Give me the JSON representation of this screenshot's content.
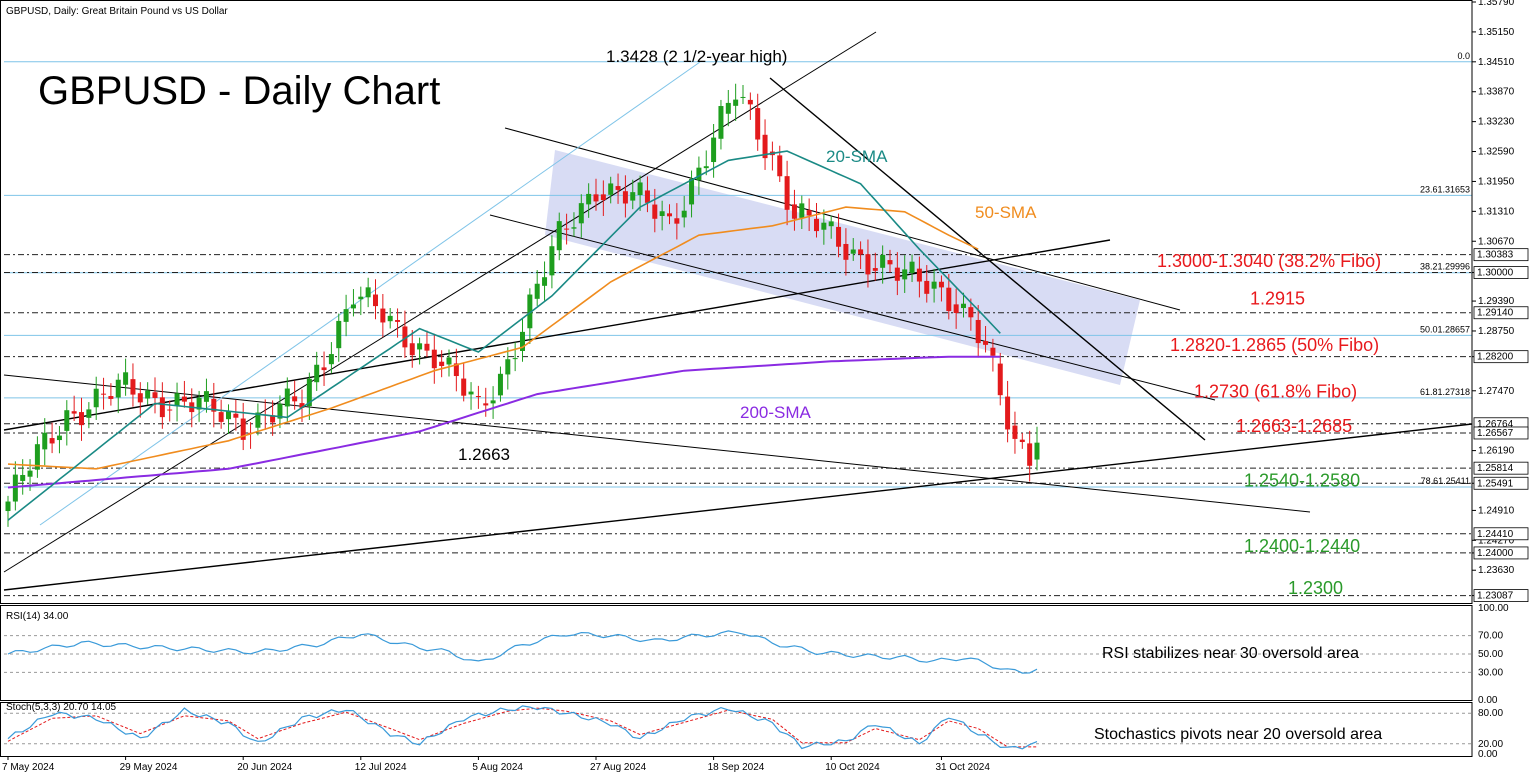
{
  "header": {
    "symbol_line": "GBPUSD, Daily:  Great Britain Pound vs US Dollar",
    "title": "GBPUSD - Daily Chart"
  },
  "annotations": {
    "high_label": "1.3428 (2 1/2-year high)",
    "low_label": "1.2663",
    "sma20": "20-SMA",
    "sma50": "50-SMA",
    "sma200": "200-SMA",
    "rsi_note": "RSI stabilizes near 30 oversold area",
    "stoch_note": "Stochastics pivots near 20 oversold area"
  },
  "levels": [
    {
      "text": "1.3000-1.3040 (38.2% Fibo)",
      "price": 1.3025,
      "color": "#e8191c"
    },
    {
      "text": "1.2915",
      "price": 1.2945,
      "color": "#e8191c"
    },
    {
      "text": "1.2820-1.2865 (50% Fibo)",
      "price": 1.2845,
      "color": "#e8191c"
    },
    {
      "text": "1.2730 (61.8% Fibo)",
      "price": 1.2745,
      "color": "#e8191c"
    },
    {
      "text": "1.2663-1.2685",
      "price": 1.2672,
      "color": "#e8191c"
    },
    {
      "text": "1.2540-1.2580",
      "price": 1.2555,
      "color": "#2a9a2a"
    },
    {
      "text": "1.2400-1.2440",
      "price": 1.2415,
      "color": "#2a9a2a"
    },
    {
      "text": "1.2300",
      "price": 1.2325,
      "color": "#2a9a2a"
    }
  ],
  "fibo_labels": [
    {
      "text": "0.0",
      "price": 1.34511
    },
    {
      "text": "23.61.31653",
      "price": 1.31653
    },
    {
      "text": "38.21.29996",
      "price": 1.29996
    },
    {
      "text": "50.01.28657",
      "price": 1.28657
    },
    {
      "text": "61.81.27318",
      "price": 1.27318
    },
    {
      "text": "78.61.25411",
      "price": 1.25411
    }
  ],
  "price_axis": {
    "ticks": [
      "1.35790",
      "1.35150",
      "1.34510",
      "1.33870",
      "1.33230",
      "1.32590",
      "1.31950",
      "1.31310",
      "1.30670",
      "1.30000",
      "1.29390",
      "1.28750",
      "1.28200",
      "1.27470",
      "1.26190",
      "1.25491",
      "1.24910",
      "1.24270",
      "1.24000",
      "1.23630",
      "1.23087"
    ],
    "tick_values": [
      1.3579,
      1.3515,
      1.3451,
      1.3387,
      1.3323,
      1.3259,
      1.3195,
      1.3131,
      1.3067,
      1.3,
      1.2939,
      1.2875,
      1.282,
      1.2747,
      1.2619,
      1.25491,
      1.2491,
      1.2427,
      1.24,
      1.2363,
      1.23087
    ],
    "highlighted": [
      {
        "text": "1.30383",
        "price": 1.30383
      },
      {
        "text": "1.30000",
        "price": 1.3
      },
      {
        "text": "1.29140",
        "price": 1.2914
      },
      {
        "text": "1.28200",
        "price": 1.282
      },
      {
        "text": "1.26764",
        "price": 1.26764
      },
      {
        "text": "1.26567",
        "price": 1.26567
      },
      {
        "text": "1.25814",
        "price": 1.25814
      },
      {
        "text": "1.25491",
        "price": 1.25491
      },
      {
        "text": "1.24410",
        "price": 1.2441
      },
      {
        "text": "1.24000",
        "price": 1.24
      },
      {
        "text": "1.23087",
        "price": 1.23087
      }
    ]
  },
  "date_axis": [
    {
      "text": "7 May 2024",
      "idx": 0
    },
    {
      "text": "29 May 2024",
      "idx": 16
    },
    {
      "text": "20 Jun 2024",
      "idx": 32
    },
    {
      "text": "12 Jul 2024",
      "idx": 48
    },
    {
      "text": "5 Aug 2024",
      "idx": 64
    },
    {
      "text": "27 Aug 2024",
      "idx": 80
    },
    {
      "text": "18 Sep 2024",
      "idx": 96
    },
    {
      "text": "10 Oct 2024",
      "idx": 112
    },
    {
      "text": "31 Oct 2024",
      "idx": 127
    }
  ],
  "rsi": {
    "label": "RSI(14) 34.00",
    "ticks": [
      "100.00",
      "70.00",
      "50.00",
      "30.00",
      "0.00"
    ],
    "tick_values": [
      100,
      70,
      50,
      30,
      0
    ]
  },
  "stoch": {
    "label": "Stoch(5,3,3) 20.70 14.05",
    "ticks": [
      "80.00",
      "20.00",
      "0.00"
    ],
    "tick_values": [
      80,
      20,
      0
    ]
  },
  "colors": {
    "up": "#1e9e1e",
    "down": "#e31a1c",
    "sma20": "#1a8a85",
    "sma50": "#f08c1e",
    "sma200": "#8a2be2",
    "channel_fill": "#c8cdf0",
    "rsi_line": "#3a9ad9",
    "stoch_main": "#3a9ad9",
    "stoch_signal": "#e31a1c",
    "fibo": "#7fc4e8"
  },
  "chart_data": {
    "type": "line",
    "title": "GBPUSD - Daily Chart",
    "subtitle": "GBPUSD, Daily:  Great Britain Pound vs US Dollar",
    "ylim": [
      1.2295,
      1.3579
    ],
    "close_waypoints": [
      [
        0,
        1.251
      ],
      [
        8,
        1.27
      ],
      [
        16,
        1.275
      ],
      [
        24,
        1.272
      ],
      [
        32,
        1.268
      ],
      [
        40,
        1.272
      ],
      [
        47,
        1.296
      ],
      [
        53,
        1.287
      ],
      [
        58,
        1.283
      ],
      [
        64,
        1.27
      ],
      [
        67,
        1.278
      ],
      [
        71,
        1.293
      ],
      [
        75,
        1.307
      ],
      [
        80,
        1.319
      ],
      [
        86,
        1.315
      ],
      [
        90,
        1.311
      ],
      [
        95,
        1.325
      ],
      [
        99,
        1.338
      ],
      [
        101,
        1.334
      ],
      [
        104,
        1.325
      ],
      [
        107,
        1.312
      ],
      [
        112,
        1.308
      ],
      [
        116,
        1.304
      ],
      [
        121,
        1.299
      ],
      [
        126,
        1.298
      ],
      [
        129,
        1.294
      ],
      [
        131,
        1.289
      ],
      [
        133,
        1.283
      ],
      [
        135,
        1.273
      ],
      [
        137,
        1.264
      ],
      [
        139,
        1.262
      ],
      [
        140,
        1.267
      ]
    ],
    "sma20_waypoints": [
      [
        0,
        1.247
      ],
      [
        20,
        1.272
      ],
      [
        38,
        1.269
      ],
      [
        56,
        1.288
      ],
      [
        64,
        1.283
      ],
      [
        74,
        1.295
      ],
      [
        86,
        1.314
      ],
      [
        98,
        1.324
      ],
      [
        106,
        1.326
      ],
      [
        116,
        1.319
      ],
      [
        124,
        1.305
      ],
      [
        132,
        1.292
      ],
      [
        135,
        1.287
      ]
    ],
    "sma50_waypoints": [
      [
        0,
        1.259
      ],
      [
        12,
        1.258
      ],
      [
        30,
        1.264
      ],
      [
        44,
        1.271
      ],
      [
        58,
        1.279
      ],
      [
        70,
        1.284
      ],
      [
        82,
        1.298
      ],
      [
        94,
        1.308
      ],
      [
        104,
        1.31
      ],
      [
        114,
        1.314
      ],
      [
        122,
        1.313
      ],
      [
        128,
        1.308
      ],
      [
        132,
        1.305
      ]
    ],
    "sma200_waypoints": [
      [
        0,
        1.254
      ],
      [
        30,
        1.258
      ],
      [
        56,
        1.266
      ],
      [
        72,
        1.274
      ],
      [
        92,
        1.279
      ],
      [
        112,
        1.281
      ],
      [
        128,
        1.282
      ],
      [
        135,
        1.282
      ]
    ],
    "rsi_waypoints": [
      [
        0,
        50
      ],
      [
        10,
        62
      ],
      [
        18,
        58
      ],
      [
        26,
        55
      ],
      [
        34,
        52
      ],
      [
        42,
        60
      ],
      [
        48,
        72
      ],
      [
        54,
        60
      ],
      [
        60,
        52
      ],
      [
        64,
        40
      ],
      [
        70,
        60
      ],
      [
        76,
        72
      ],
      [
        82,
        70
      ],
      [
        88,
        64
      ],
      [
        94,
        70
      ],
      [
        100,
        74
      ],
      [
        104,
        62
      ],
      [
        110,
        52
      ],
      [
        116,
        48
      ],
      [
        122,
        46
      ],
      [
        126,
        42
      ],
      [
        130,
        46
      ],
      [
        133,
        40
      ],
      [
        136,
        32
      ],
      [
        138,
        30
      ],
      [
        140,
        34
      ]
    ],
    "stoch_main_waypoints": [
      [
        0,
        30
      ],
      [
        6,
        80
      ],
      [
        12,
        70
      ],
      [
        18,
        30
      ],
      [
        24,
        85
      ],
      [
        30,
        60
      ],
      [
        34,
        20
      ],
      [
        40,
        70
      ],
      [
        46,
        88
      ],
      [
        52,
        40
      ],
      [
        56,
        20
      ],
      [
        62,
        70
      ],
      [
        68,
        88
      ],
      [
        72,
        92
      ],
      [
        76,
        80
      ],
      [
        82,
        60
      ],
      [
        86,
        30
      ],
      [
        92,
        70
      ],
      [
        98,
        90
      ],
      [
        104,
        60
      ],
      [
        108,
        15
      ],
      [
        114,
        25
      ],
      [
        118,
        60
      ],
      [
        124,
        20
      ],
      [
        128,
        75
      ],
      [
        132,
        40
      ],
      [
        136,
        10
      ],
      [
        140,
        20
      ]
    ],
    "stoch_signal_waypoints": [
      [
        0,
        25
      ],
      [
        6,
        70
      ],
      [
        12,
        75
      ],
      [
        18,
        40
      ],
      [
        24,
        75
      ],
      [
        30,
        65
      ],
      [
        34,
        30
      ],
      [
        40,
        60
      ],
      [
        46,
        82
      ],
      [
        52,
        50
      ],
      [
        56,
        28
      ],
      [
        62,
        60
      ],
      [
        68,
        84
      ],
      [
        72,
        90
      ],
      [
        76,
        84
      ],
      [
        82,
        65
      ],
      [
        86,
        38
      ],
      [
        92,
        62
      ],
      [
        98,
        86
      ],
      [
        104,
        68
      ],
      [
        108,
        22
      ],
      [
        114,
        22
      ],
      [
        118,
        50
      ],
      [
        124,
        28
      ],
      [
        128,
        65
      ],
      [
        132,
        50
      ],
      [
        136,
        14
      ],
      [
        140,
        14
      ]
    ]
  }
}
